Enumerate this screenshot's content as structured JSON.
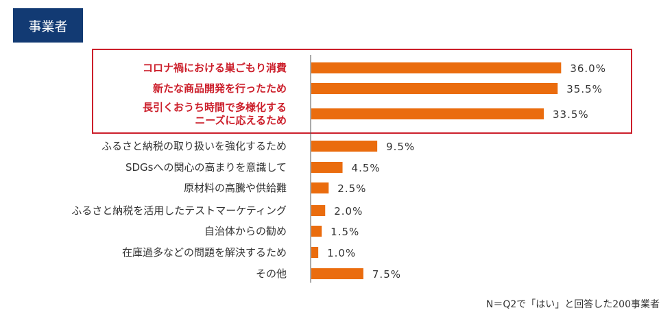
{
  "header": {
    "label": "事業者"
  },
  "note": "N＝Q2で「はい」と回答した200事業者",
  "colors": {
    "bar": "#ea6c0e",
    "highlight": "#cc1f2b",
    "text": "#333333",
    "header_bg": "#123a73",
    "axis": "#555555"
  },
  "chart_data": {
    "type": "bar",
    "orientation": "horizontal",
    "categories": [
      "コロナ禍における巣ごもり消費",
      "新たな商品開発を行ったため",
      "長引くおうち時間で多様化する\nニーズに応えるため",
      "ふるさと納税の取り扱いを強化するため",
      "SDGsへの関心の高まりを意識して",
      "原材料の高騰や供給難",
      "ふるさと納税を活用したテストマーケティング",
      "自治体からの勧め",
      "在庫過多などの問題を解決するため",
      "その他"
    ],
    "values": [
      36.0,
      35.5,
      33.5,
      9.5,
      4.5,
      2.5,
      2.0,
      1.5,
      1.0,
      7.5
    ],
    "value_labels": [
      "36.0%",
      "35.5%",
      "33.5%",
      "9.5%",
      "4.5%",
      "2.5%",
      "2.0%",
      "1.5%",
      "1.0%",
      "7.5%"
    ],
    "highlighted": [
      true,
      true,
      true,
      false,
      false,
      false,
      false,
      false,
      false,
      false
    ],
    "xlim": [
      0,
      40
    ],
    "grid": false,
    "legend": "none",
    "title": "",
    "xlabel": "",
    "ylabel": ""
  }
}
